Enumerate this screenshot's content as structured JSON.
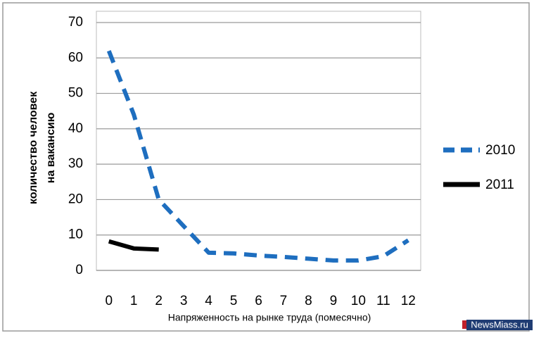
{
  "chart_data": {
    "type": "line",
    "xlabel": "Напряженность на рынке труда (помесячно)",
    "ylabel": [
      "количество человек",
      "на вакансию"
    ],
    "categories": [
      0,
      1,
      2,
      3,
      4,
      5,
      6,
      7,
      8,
      9,
      10,
      11,
      12
    ],
    "series": [
      {
        "name": "2010",
        "color": "#1e6ebf",
        "dashed": true,
        "values": [
          62,
          44,
          20,
          12.5,
          5,
          4.8,
          4.2,
          3.8,
          3.3,
          2.8,
          2.8,
          4,
          8.5
        ]
      },
      {
        "name": "2011",
        "color": "#000000",
        "dashed": false,
        "values": [
          8.2,
          6.2,
          5.9,
          null,
          null,
          null,
          null,
          null,
          null,
          null,
          null,
          null,
          null
        ]
      }
    ],
    "ylim": [
      0,
      70
    ],
    "yticks": [
      0,
      10,
      20,
      30,
      40,
      50,
      60,
      70
    ],
    "grid": true,
    "legend": "right",
    "watermark": "NewsMiass.ru"
  }
}
